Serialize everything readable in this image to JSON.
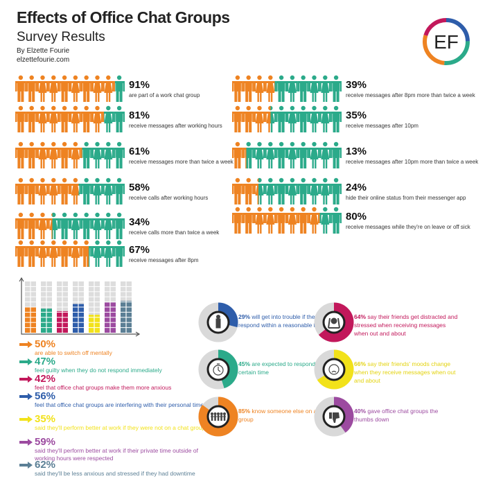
{
  "header": {
    "title": "Effects of Office Chat Groups",
    "subtitle": "Survey Results",
    "author": "By Elzette Fourie",
    "site": "elzettefourie.com",
    "logo_text": "EF"
  },
  "colors": {
    "orange": "#EE8322",
    "teal": "#2BAA8A",
    "crimson": "#C2185B",
    "blue": "#2E5DAA",
    "yellow": "#F2E21A",
    "purple": "#9C4BA0",
    "slate": "#5B7F95",
    "gray": "#DDDDDD"
  },
  "chart_data": [
    {
      "type": "pictogram",
      "icons_per_row": 10,
      "items": [
        {
          "value": 91,
          "label": "91%",
          "caption": "are part of a work chat group"
        },
        {
          "value": 81,
          "label": "81%",
          "caption": "receive messages after working hours"
        },
        {
          "value": 61,
          "label": "61%",
          "caption": "receive messages more than twice a week"
        },
        {
          "value": 58,
          "label": "58%",
          "caption": "receive calls after working hours"
        },
        {
          "value": 34,
          "label": "34%",
          "caption": "receive calls more than twice a week"
        },
        {
          "value": 67,
          "label": "67%",
          "caption": "receive messages after 8pm"
        },
        {
          "value": 39,
          "label": "39%",
          "caption": "receive messages after 8pm more than twice a week"
        },
        {
          "value": 35,
          "label": "35%",
          "caption": "receive messages after 10pm"
        },
        {
          "value": 13,
          "label": "13%",
          "caption": "receive messages after 10pm more than twice a week"
        },
        {
          "value": 24,
          "label": "24%",
          "caption": "hide their online status from their messenger app"
        },
        {
          "value": 80,
          "label": "80%",
          "caption": "receive messages while they're on leave or off sick"
        }
      ]
    },
    {
      "type": "bar",
      "ylim": [
        0,
        100
      ],
      "grid": false,
      "items": [
        {
          "value": 50,
          "label": "50%",
          "caption": "are able to switch off mentally",
          "color": "#EE8322"
        },
        {
          "value": 47,
          "label": "47%",
          "caption": "feel guilty when they do not respond immediately",
          "color": "#2BAA8A"
        },
        {
          "value": 42,
          "label": "42%",
          "caption": "feel that office chat groups make them more anxious",
          "color": "#C2185B"
        },
        {
          "value": 56,
          "label": "56%",
          "caption": "feel that office chat groups are interfering with their personal time",
          "color": "#2E5DAA"
        },
        {
          "value": 35,
          "label": "35%",
          "caption": "said they'll perform better at work if they were not on a chat group",
          "color": "#F2E21A"
        },
        {
          "value": 59,
          "label": "59%",
          "caption": "said they'll perform better at work if their private time outside of working hours were respected",
          "color": "#9C4BA0"
        },
        {
          "value": 62,
          "label": "62%",
          "caption": "said they'll be less anxious and stressed if they had downtime",
          "color": "#5B7F95"
        }
      ]
    },
    {
      "type": "pie",
      "style": "donut",
      "items": [
        {
          "value": 29,
          "label": "29%",
          "caption": "will get into trouble if they do not respond within a reasonable time",
          "color": "#2E5DAA",
          "icon": "stressed-person-icon"
        },
        {
          "value": 64,
          "label": "64%",
          "caption": "say their friends get distracted and stressed when receiving messages when out and about",
          "color": "#C2185B",
          "icon": "head-in-hands-icon"
        },
        {
          "value": 45,
          "label": "45%",
          "caption": "are expected to respond within a certain time",
          "color": "#2BAA8A",
          "icon": "stopwatch-icon"
        },
        {
          "value": 66,
          "label": "66%",
          "caption": "say their friends' moods change when they receive messages when out and about",
          "color": "#F2E21A",
          "icon": "sad-face-icon"
        },
        {
          "value": 85,
          "label": "85%",
          "caption": "know someone else on a chat group",
          "color": "#EE8322",
          "icon": "group-icon"
        },
        {
          "value": 40,
          "label": "40%",
          "caption": "gave office chat groups the thumbs down",
          "color": "#9C4BA0",
          "icon": "thumbs-down-icon"
        }
      ]
    }
  ]
}
